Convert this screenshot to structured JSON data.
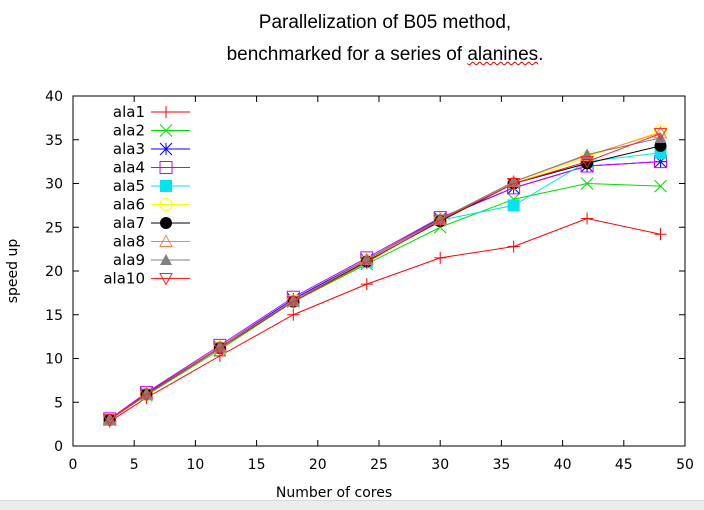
{
  "chart_data": {
    "type": "line",
    "title_line1": "Parallelization of B05 method,",
    "title_line2_prefix": "benchmarked for a series of ",
    "title_line2_word": "alanines",
    "title_line2_suffix": ".",
    "xlabel": "Number of cores",
    "ylabel": "speed up",
    "xlim": [
      0,
      50
    ],
    "ylim": [
      0,
      40
    ],
    "xticks": [
      "0",
      "5",
      "10",
      "15",
      "20",
      "25",
      "30",
      "35",
      "40",
      "45",
      "50"
    ],
    "yticks": [
      "0",
      "5",
      "10",
      "15",
      "20",
      "25",
      "30",
      "35",
      "40"
    ],
    "grid": false,
    "legend_position": "top-left",
    "x": [
      3,
      6,
      12,
      18,
      24,
      30,
      36,
      42,
      48
    ],
    "series": [
      {
        "name": "ala1",
        "color": "#ff0000",
        "marker": "plus",
        "values": [
          2.8,
          5.5,
          10.3,
          15.0,
          18.5,
          21.5,
          22.8,
          26.0,
          24.2
        ]
      },
      {
        "name": "ala2",
        "color": "#00dd00",
        "marker": "cross",
        "values": [
          3.0,
          5.8,
          11.0,
          16.5,
          20.8,
          25.0,
          28.2,
          30.0,
          29.7
        ]
      },
      {
        "name": "ala3",
        "color": "#0000ff",
        "marker": "star",
        "values": [
          3.0,
          6.0,
          11.3,
          16.8,
          21.3,
          26.0,
          29.5,
          32.0,
          32.5
        ]
      },
      {
        "name": "ala4",
        "color": "#cc00ff",
        "marker": "square",
        "values": [
          3.1,
          6.1,
          11.5,
          17.0,
          21.5,
          26.1,
          29.5,
          32.0,
          32.5
        ]
      },
      {
        "name": "ala5",
        "color": "#00e5ee",
        "marker": "filled-square",
        "values": [
          3.0,
          5.9,
          11.2,
          16.6,
          21.0,
          25.8,
          27.5,
          32.5,
          33.5
        ]
      },
      {
        "name": "ala6",
        "color": "#ffff00",
        "marker": "circle",
        "values": [
          3.0,
          5.9,
          11.3,
          16.6,
          21.2,
          25.8,
          30.0,
          33.0,
          36.0
        ]
      },
      {
        "name": "ala7",
        "color": "#000000",
        "marker": "filled-circle",
        "values": [
          3.0,
          5.9,
          11.2,
          16.5,
          21.1,
          25.7,
          30.0,
          32.3,
          34.3
        ]
      },
      {
        "name": "ala8",
        "color": "#ff7f50",
        "marker": "triangle",
        "values": [
          3.0,
          5.9,
          11.3,
          16.6,
          21.3,
          25.9,
          30.2,
          33.2,
          35.8
        ]
      },
      {
        "name": "ala9",
        "color": "#808080",
        "marker": "filled-triangle",
        "values": [
          3.0,
          5.9,
          11.3,
          16.6,
          21.3,
          25.9,
          30.2,
          33.3,
          35.2
        ]
      },
      {
        "name": "ala10",
        "color": "#ff2020",
        "marker": "down-triangle",
        "values": [
          3.0,
          5.9,
          11.2,
          16.5,
          21.0,
          25.8,
          30.0,
          32.5,
          35.7
        ]
      }
    ]
  }
}
